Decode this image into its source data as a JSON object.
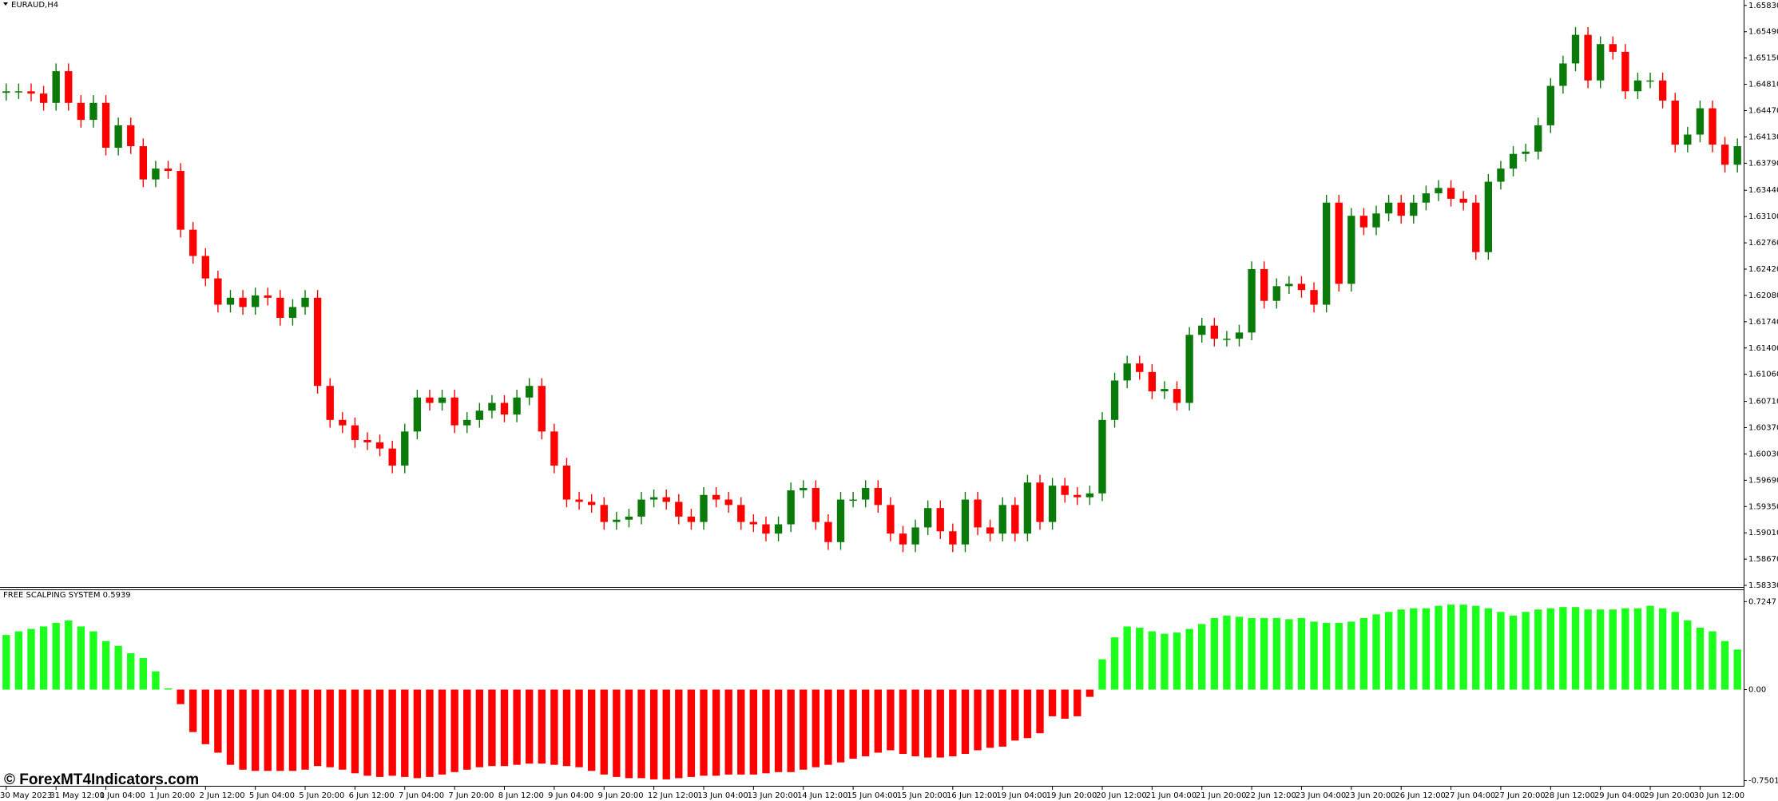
{
  "chart_data": [
    {
      "type": "candlestick",
      "title": "EURAUD,H4",
      "watermark": "© ForexMT4Indicators.com",
      "up_color": "#0a7a0a",
      "down_color": "#ff0000",
      "categories": [
        "30 May 2023",
        null,
        null,
        null,
        "31 May 12:00",
        null,
        null,
        null,
        "1 Jun 04:00",
        null,
        null,
        null,
        "1 Jun 20:00",
        null,
        null,
        null,
        "2 Jun 12:00",
        null,
        null,
        null,
        "5 Jun 04:00",
        null,
        null,
        null,
        "5 Jun 20:00",
        null,
        null,
        null,
        "6 Jun 12:00",
        null,
        null,
        null,
        "7 Jun 04:00",
        null,
        null,
        null,
        "7 Jun 20:00",
        null,
        null,
        null,
        "8 Jun 12:00",
        null,
        null,
        null,
        "9 Jun 04:00",
        null,
        null,
        null,
        "9 Jun 20:00",
        null,
        null,
        null,
        "12 Jun 12:00",
        null,
        null,
        null,
        "13 Jun 04:00",
        null,
        null,
        null,
        "13 Jun 20:00",
        null,
        null,
        null,
        "14 Jun 12:00",
        null,
        null,
        null,
        "15 Jun 04:00",
        null,
        null,
        null,
        "15 Jun 20:00",
        null,
        null,
        null,
        "16 Jun 12:00",
        null,
        null,
        null,
        "19 Jun 04:00",
        null,
        null,
        null,
        "19 Jun 20:00",
        null,
        null,
        null,
        "20 Jun 12:00",
        null,
        null,
        null,
        "21 Jun 04:00",
        null,
        null,
        null,
        "21 Jun 20:00",
        null,
        null,
        null,
        "22 Jun 12:00",
        null,
        null,
        null,
        "23 Jun 04:00",
        null,
        null,
        null,
        "23 Jun 20:00",
        null,
        null,
        null,
        "26 Jun 12:00",
        null,
        null,
        null,
        "27 Jun 04:00",
        null,
        null,
        null,
        "27 Jun 20:00",
        null,
        null,
        null,
        "28 Jun 12:00",
        null,
        null,
        null,
        "29 Jun 04:00",
        null,
        null,
        null,
        "29 Jun 20:00",
        null,
        null,
        null,
        "30 Jun 12:00",
        null,
        null,
        null
      ],
      "open": [
        1.647,
        1.6472,
        1.6472,
        1.6469,
        1.6457,
        1.6498,
        1.6457,
        1.6435,
        1.6457,
        1.6399,
        1.6428,
        1.6401,
        1.6358,
        1.6372,
        1.6369,
        1.6293,
        1.6259,
        1.623,
        1.6196,
        1.6205,
        1.6193,
        1.6208,
        1.6205,
        1.6179,
        1.6193,
        1.6205,
        1.6091,
        1.6047,
        1.604,
        1.6021,
        1.6018,
        1.601,
        1.5988,
        1.6032,
        1.6076,
        1.6069,
        1.6076,
        1.604,
        1.6047,
        1.6059,
        1.6069,
        1.6054,
        1.6076,
        1.6091,
        1.6032,
        1.5988,
        1.5944,
        1.5941,
        1.5937,
        1.5915,
        1.5918,
        1.5922,
        1.5944,
        1.5947,
        1.5941,
        1.5922,
        1.5915,
        1.595,
        1.5944,
        1.5937,
        1.5915,
        1.5912,
        1.59,
        1.5912,
        1.5956,
        1.5959,
        1.5915,
        1.5889,
        1.5944,
        1.5944,
        1.5959,
        1.5937,
        1.59,
        1.5886,
        1.5908,
        1.5933,
        1.5903,
        1.5886,
        1.5944,
        1.5908,
        1.59,
        1.5937,
        1.59,
        1.5966,
        1.5915,
        1.5962,
        1.595,
        1.5947,
        1.5952,
        1.6047,
        1.6098,
        1.612,
        1.6109,
        1.6084,
        1.6087,
        1.6069,
        1.6157,
        1.6169,
        1.6152,
        1.6152,
        1.616,
        1.6242,
        1.6201,
        1.622,
        1.6223,
        1.6215,
        1.6196,
        1.6328,
        1.6223,
        1.6311,
        1.6296,
        1.6314,
        1.6328,
        1.6311,
        1.6328,
        1.634,
        1.6347,
        1.6333,
        1.6328,
        1.6264,
        1.6355,
        1.6372,
        1.6391,
        1.6394,
        1.6428,
        1.6479,
        1.6508,
        1.6545,
        1.6486,
        1.6533,
        1.6523,
        1.6472,
        1.6486,
        1.6486,
        1.646,
        1.6403,
        1.6416,
        1.645,
        1.6403,
        1.6377
      ],
      "high": [
        1.6482,
        1.6482,
        1.6482,
        1.6479,
        1.6508,
        1.6508,
        1.6467,
        1.6467,
        1.6467,
        1.6438,
        1.6438,
        1.6411,
        1.6382,
        1.6382,
        1.6379,
        1.6303,
        1.6269,
        1.624,
        1.6215,
        1.6215,
        1.6218,
        1.6218,
        1.6215,
        1.6203,
        1.6215,
        1.6215,
        1.6101,
        1.6057,
        1.605,
        1.6031,
        1.6028,
        1.602,
        1.6042,
        1.6086,
        1.6086,
        1.6086,
        1.6086,
        1.6057,
        1.6069,
        1.6079,
        1.6079,
        1.6086,
        1.6101,
        1.6101,
        1.6042,
        1.5998,
        1.5954,
        1.5951,
        1.5947,
        1.5928,
        1.5932,
        1.5954,
        1.5957,
        1.5957,
        1.5951,
        1.5932,
        1.596,
        1.596,
        1.5954,
        1.5947,
        1.5925,
        1.5922,
        1.5922,
        1.5966,
        1.5969,
        1.5969,
        1.5925,
        1.5954,
        1.5954,
        1.5969,
        1.5969,
        1.5947,
        1.591,
        1.5918,
        1.5943,
        1.5943,
        1.5913,
        1.5954,
        1.5954,
        1.5918,
        1.5947,
        1.5947,
        1.5976,
        1.5976,
        1.5972,
        1.5972,
        1.596,
        1.5962,
        1.6057,
        1.6108,
        1.613,
        1.613,
        1.6119,
        1.6097,
        1.6097,
        1.6167,
        1.6179,
        1.6179,
        1.6162,
        1.617,
        1.6252,
        1.6252,
        1.623,
        1.6233,
        1.6233,
        1.6225,
        1.6338,
        1.6338,
        1.6321,
        1.6321,
        1.6324,
        1.6338,
        1.6338,
        1.6338,
        1.635,
        1.6357,
        1.6357,
        1.6343,
        1.6338,
        1.6365,
        1.6382,
        1.6401,
        1.6404,
        1.6438,
        1.6489,
        1.6518,
        1.6555,
        1.6555,
        1.6543,
        1.6543,
        1.6533,
        1.6496,
        1.6496,
        1.6496,
        1.647,
        1.6426,
        1.646,
        1.646,
        1.6413,
        1.6411
      ],
      "low": [
        1.646,
        1.6462,
        1.6459,
        1.6447,
        1.6447,
        1.6447,
        1.6425,
        1.6425,
        1.6389,
        1.6389,
        1.6391,
        1.6348,
        1.6348,
        1.6359,
        1.6283,
        1.6249,
        1.622,
        1.6186,
        1.6186,
        1.6183,
        1.6183,
        1.6195,
        1.6169,
        1.6169,
        1.6183,
        1.6081,
        1.6037,
        1.603,
        1.6011,
        1.6008,
        1.6,
        1.5978,
        1.5978,
        1.6022,
        1.6059,
        1.6059,
        1.603,
        1.603,
        1.6037,
        1.6049,
        1.6044,
        1.6044,
        1.6066,
        1.6022,
        1.5978,
        1.5934,
        1.5931,
        1.5927,
        1.5905,
        1.5905,
        1.5908,
        1.5912,
        1.5934,
        1.5931,
        1.5912,
        1.5905,
        1.5905,
        1.5934,
        1.5927,
        1.5905,
        1.5902,
        1.589,
        1.589,
        1.5902,
        1.5946,
        1.5905,
        1.5879,
        1.5879,
        1.5934,
        1.5934,
        1.5927,
        1.589,
        1.5876,
        1.5876,
        1.5898,
        1.5893,
        1.5876,
        1.5876,
        1.5898,
        1.589,
        1.589,
        1.589,
        1.589,
        1.5905,
        1.5905,
        1.594,
        1.5937,
        1.5937,
        1.5942,
        1.6037,
        1.6088,
        1.6099,
        1.6074,
        1.6074,
        1.6059,
        1.6059,
        1.6147,
        1.6142,
        1.6142,
        1.6142,
        1.615,
        1.6191,
        1.6191,
        1.621,
        1.6205,
        1.6186,
        1.6186,
        1.6213,
        1.6213,
        1.6286,
        1.6286,
        1.6304,
        1.6301,
        1.6301,
        1.6318,
        1.633,
        1.6323,
        1.6318,
        1.6254,
        1.6254,
        1.6345,
        1.6362,
        1.6381,
        1.6384,
        1.6418,
        1.6469,
        1.6498,
        1.6476,
        1.6476,
        1.6513,
        1.6462,
        1.6462,
        1.6476,
        1.645,
        1.6393,
        1.6393,
        1.6406,
        1.6393,
        1.6367,
        1.6367
      ],
      "close": [
        1.6472,
        1.6472,
        1.6469,
        1.6457,
        1.6498,
        1.6457,
        1.6435,
        1.6457,
        1.6399,
        1.6428,
        1.6401,
        1.6358,
        1.6372,
        1.6369,
        1.6293,
        1.6259,
        1.623,
        1.6196,
        1.6205,
        1.6193,
        1.6208,
        1.6205,
        1.6179,
        1.6193,
        1.6205,
        1.6091,
        1.6047,
        1.604,
        1.6021,
        1.6018,
        1.601,
        1.5988,
        1.6032,
        1.6076,
        1.6069,
        1.6076,
        1.604,
        1.6047,
        1.6059,
        1.6069,
        1.6054,
        1.6076,
        1.6091,
        1.6032,
        1.5988,
        1.5944,
        1.5941,
        1.5937,
        1.5915,
        1.5918,
        1.5922,
        1.5944,
        1.5947,
        1.5941,
        1.5922,
        1.5915,
        1.595,
        1.5944,
        1.5937,
        1.5915,
        1.5912,
        1.59,
        1.5912,
        1.5956,
        1.5959,
        1.5915,
        1.5889,
        1.5944,
        1.5944,
        1.5959,
        1.5937,
        1.59,
        1.5886,
        1.5908,
        1.5933,
        1.5903,
        1.5886,
        1.5944,
        1.5908,
        1.59,
        1.5937,
        1.59,
        1.5966,
        1.5915,
        1.5962,
        1.595,
        1.5947,
        1.5952,
        1.6047,
        1.6098,
        1.612,
        1.6109,
        1.6084,
        1.6087,
        1.6069,
        1.6157,
        1.6169,
        1.6152,
        1.6152,
        1.616,
        1.6242,
        1.6201,
        1.622,
        1.6223,
        1.6215,
        1.6196,
        1.6328,
        1.6223,
        1.6311,
        1.6296,
        1.6314,
        1.6328,
        1.6311,
        1.6328,
        1.634,
        1.6347,
        1.6333,
        1.6328,
        1.6264,
        1.6355,
        1.6372,
        1.6391,
        1.6394,
        1.6428,
        1.6479,
        1.6508,
        1.6545,
        1.6486,
        1.6533,
        1.6523,
        1.6472,
        1.6486,
        1.6486,
        1.646,
        1.6403,
        1.6416,
        1.645,
        1.6403,
        1.6377,
        1.6401
      ],
      "ylim": [
        1.5832,
        1.6589
      ],
      "yticks": [
        {
          "value": 1.6583,
          "label": "1.65830"
        },
        {
          "value": 1.6549,
          "label": "1.65490"
        },
        {
          "value": 1.6515,
          "label": "1.65150"
        },
        {
          "value": 1.6481,
          "label": "1.64810"
        },
        {
          "value": 1.6447,
          "label": "1.64470"
        },
        {
          "value": 1.6413,
          "label": "1.64130"
        },
        {
          "value": 1.6379,
          "label": "1.63790"
        },
        {
          "value": 1.6344,
          "label": "1.63440"
        },
        {
          "value": 1.631,
          "label": "1.63100"
        },
        {
          "value": 1.6276,
          "label": "1.62760"
        },
        {
          "value": 1.6242,
          "label": "1.62420"
        },
        {
          "value": 1.6208,
          "label": "1.62080"
        },
        {
          "value": 1.6174,
          "label": "1.61740"
        },
        {
          "value": 1.614,
          "label": "1.61400"
        },
        {
          "value": 1.6106,
          "label": "1.61060"
        },
        {
          "value": 1.6071,
          "label": "1.60710"
        },
        {
          "value": 1.6037,
          "label": "1.60370"
        },
        {
          "value": 1.6003,
          "label": "1.60030"
        },
        {
          "value": 1.5969,
          "label": "1.59690"
        },
        {
          "value": 1.5935,
          "label": "1.59350"
        },
        {
          "value": 1.5901,
          "label": "1.59010"
        },
        {
          "value": 1.5867,
          "label": "1.58670"
        },
        {
          "value": 1.5833,
          "label": "1.58330"
        }
      ]
    },
    {
      "type": "histogram",
      "title": "FREE SCALPING SYSTEM 0.5939",
      "positive_color": "#1cff1c",
      "negative_color": "#ff0000",
      "values": [
        0.45,
        0.48,
        0.5,
        0.52,
        0.55,
        0.57,
        0.52,
        0.48,
        0.4,
        0.36,
        0.3,
        0.26,
        0.15,
        0.01,
        -0.12,
        -0.35,
        -0.45,
        -0.52,
        -0.62,
        -0.66,
        -0.67,
        -0.67,
        -0.67,
        -0.67,
        -0.66,
        -0.63,
        -0.64,
        -0.66,
        -0.69,
        -0.71,
        -0.72,
        -0.71,
        -0.72,
        -0.73,
        -0.72,
        -0.7,
        -0.68,
        -0.66,
        -0.64,
        -0.63,
        -0.63,
        -0.62,
        -0.61,
        -0.61,
        -0.62,
        -0.63,
        -0.64,
        -0.67,
        -0.7,
        -0.72,
        -0.73,
        -0.73,
        -0.74,
        -0.74,
        -0.73,
        -0.72,
        -0.71,
        -0.71,
        -0.7,
        -0.7,
        -0.7,
        -0.69,
        -0.68,
        -0.68,
        -0.66,
        -0.64,
        -0.62,
        -0.6,
        -0.57,
        -0.55,
        -0.52,
        -0.5,
        -0.53,
        -0.55,
        -0.56,
        -0.56,
        -0.55,
        -0.53,
        -0.5,
        -0.48,
        -0.47,
        -0.42,
        -0.4,
        -0.36,
        -0.22,
        -0.24,
        -0.22,
        -0.06,
        0.25,
        0.43,
        0.52,
        0.51,
        0.48,
        0.46,
        0.47,
        0.5,
        0.54,
        0.59,
        0.61,
        0.6,
        0.59,
        0.59,
        0.59,
        0.58,
        0.59,
        0.56,
        0.55,
        0.55,
        0.56,
        0.59,
        0.62,
        0.64,
        0.66,
        0.67,
        0.67,
        0.69,
        0.7,
        0.7,
        0.69,
        0.67,
        0.64,
        0.61,
        0.64,
        0.66,
        0.67,
        0.68,
        0.68,
        0.66,
        0.66,
        0.66,
        0.67,
        0.67,
        0.69,
        0.67,
        0.64,
        0.57,
        0.51,
        0.48,
        0.4,
        0.33
      ],
      "ylim": [
        -0.78,
        0.76
      ],
      "yticks": [
        0.7247,
        {
          "value": 0,
          "label": "0.00"
        },
        -0.7501
      ]
    }
  ]
}
